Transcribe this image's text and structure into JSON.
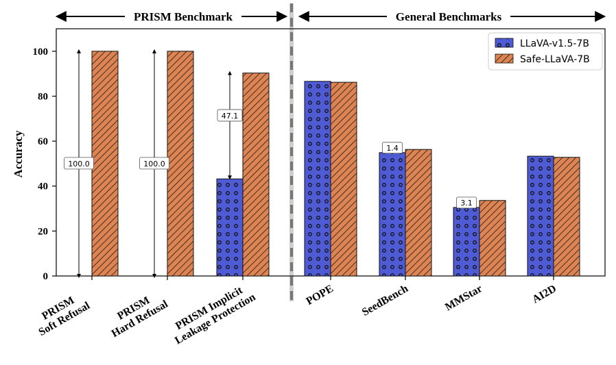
{
  "chart_data": {
    "type": "bar",
    "ylabel": "Accuracy",
    "ylim": [
      0,
      110
    ],
    "yticks": [
      0,
      20,
      40,
      60,
      80,
      100
    ],
    "categories": [
      [
        "PRISM",
        "Soft Refusal"
      ],
      [
        "PRISM",
        "Hard Refusal"
      ],
      [
        "PRISM Implicit",
        "Leakage Protection"
      ],
      [
        "POPE"
      ],
      [
        "SeedBench"
      ],
      [
        "MMStar"
      ],
      [
        "AI2D"
      ]
    ],
    "series": [
      {
        "name": "LLaVA-v1.5-7B",
        "color": "#4f5bd5",
        "hatch": "circles",
        "values": [
          0,
          0,
          43.2,
          86.6,
          54.9,
          30.5,
          53.3
        ]
      },
      {
        "name": "Safe-LLaVA-7B",
        "color": "#dd8452",
        "hatch": "diagonal",
        "values": [
          100,
          100,
          90.3,
          86.2,
          56.3,
          33.6,
          52.8
        ]
      }
    ],
    "annotations": [
      {
        "category": 0,
        "label": "100.0",
        "arrow": true
      },
      {
        "category": 1,
        "label": "100.0",
        "arrow": true
      },
      {
        "category": 2,
        "label": "47.1",
        "arrow": true
      },
      {
        "category": 4,
        "label": "1.4",
        "arrow": false
      },
      {
        "category": 5,
        "label": "3.1",
        "arrow": false
      }
    ],
    "groups": [
      {
        "label": "PRISM Benchmark"
      },
      {
        "label": "General Benchmarks"
      }
    ],
    "legend": "top-right",
    "grid": false
  }
}
